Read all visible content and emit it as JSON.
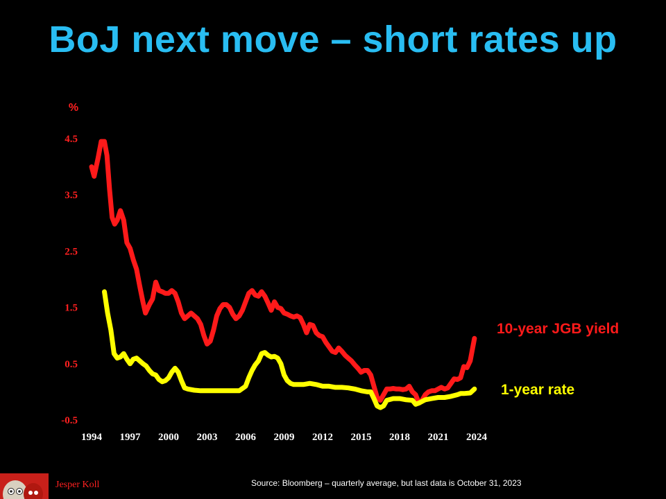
{
  "title": "BoJ next move – short rates up",
  "footer": {
    "author": "Jesper Koll",
    "source": "Source:  Bloomberg – quarterly average,  but last data is October 31, 2023"
  },
  "colors": {
    "title": "#29bdf2",
    "jgb10": "#ff1a1a",
    "rate1": "#ffff00",
    "background": "#000000"
  },
  "chart_data": {
    "type": "line",
    "ylabel": "%",
    "ylim": [
      -0.5,
      4.5
    ],
    "yticks": [
      "4.5",
      "3.5",
      "2.5",
      "1.5",
      "0.5",
      "-0.5"
    ],
    "xticks": [
      "1994",
      "1997",
      "2000",
      "2003",
      "2006",
      "2009",
      "2012",
      "2015",
      "2018",
      "2021",
      "2024"
    ],
    "xlim": [
      1994,
      2024
    ],
    "grid": false,
    "legend": "inline-right",
    "series": [
      {
        "name": "10-year JGB yield",
        "points": [
          [
            1994.0,
            4.0
          ],
          [
            1994.2,
            3.83
          ],
          [
            1994.5,
            4.15
          ],
          [
            1994.75,
            4.45
          ],
          [
            1995.0,
            4.45
          ],
          [
            1995.2,
            4.2
          ],
          [
            1995.4,
            3.6
          ],
          [
            1995.6,
            3.1
          ],
          [
            1995.8,
            2.98
          ],
          [
            1996.0,
            3.05
          ],
          [
            1996.25,
            3.22
          ],
          [
            1996.5,
            3.05
          ],
          [
            1996.75,
            2.65
          ],
          [
            1997.0,
            2.55
          ],
          [
            1997.25,
            2.35
          ],
          [
            1997.5,
            2.18
          ],
          [
            1997.75,
            1.88
          ],
          [
            1998.0,
            1.6
          ],
          [
            1998.2,
            1.4
          ],
          [
            1998.5,
            1.55
          ],
          [
            1998.75,
            1.65
          ],
          [
            1999.0,
            1.95
          ],
          [
            1999.25,
            1.8
          ],
          [
            1999.5,
            1.78
          ],
          [
            1999.75,
            1.75
          ],
          [
            2000.0,
            1.75
          ],
          [
            2000.25,
            1.8
          ],
          [
            2000.5,
            1.75
          ],
          [
            2000.75,
            1.6
          ],
          [
            2001.0,
            1.4
          ],
          [
            2001.25,
            1.3
          ],
          [
            2001.5,
            1.35
          ],
          [
            2001.75,
            1.4
          ],
          [
            2002.0,
            1.35
          ],
          [
            2002.25,
            1.3
          ],
          [
            2002.5,
            1.2
          ],
          [
            2002.75,
            1.0
          ],
          [
            2003.0,
            0.85
          ],
          [
            2003.25,
            0.9
          ],
          [
            2003.5,
            1.1
          ],
          [
            2003.75,
            1.35
          ],
          [
            2004.0,
            1.48
          ],
          [
            2004.25,
            1.55
          ],
          [
            2004.5,
            1.55
          ],
          [
            2004.75,
            1.5
          ],
          [
            2005.0,
            1.38
          ],
          [
            2005.25,
            1.3
          ],
          [
            2005.5,
            1.35
          ],
          [
            2005.75,
            1.45
          ],
          [
            2006.0,
            1.6
          ],
          [
            2006.25,
            1.75
          ],
          [
            2006.5,
            1.8
          ],
          [
            2006.75,
            1.72
          ],
          [
            2007.0,
            1.7
          ],
          [
            2007.25,
            1.78
          ],
          [
            2007.5,
            1.7
          ],
          [
            2007.75,
            1.58
          ],
          [
            2008.0,
            1.45
          ],
          [
            2008.25,
            1.6
          ],
          [
            2008.5,
            1.5
          ],
          [
            2008.75,
            1.48
          ],
          [
            2009.0,
            1.4
          ],
          [
            2009.25,
            1.38
          ],
          [
            2009.5,
            1.35
          ],
          [
            2009.75,
            1.33
          ],
          [
            2010.0,
            1.35
          ],
          [
            2010.25,
            1.32
          ],
          [
            2010.5,
            1.2
          ],
          [
            2010.75,
            1.05
          ],
          [
            2011.0,
            1.2
          ],
          [
            2011.25,
            1.18
          ],
          [
            2011.5,
            1.05
          ],
          [
            2011.75,
            1.0
          ],
          [
            2012.0,
            0.98
          ],
          [
            2012.25,
            0.88
          ],
          [
            2012.5,
            0.8
          ],
          [
            2012.75,
            0.72
          ],
          [
            2013.0,
            0.7
          ],
          [
            2013.25,
            0.78
          ],
          [
            2013.5,
            0.72
          ],
          [
            2013.75,
            0.65
          ],
          [
            2014.0,
            0.6
          ],
          [
            2014.25,
            0.55
          ],
          [
            2014.5,
            0.48
          ],
          [
            2014.75,
            0.42
          ],
          [
            2015.0,
            0.35
          ],
          [
            2015.25,
            0.38
          ],
          [
            2015.5,
            0.38
          ],
          [
            2015.75,
            0.3
          ],
          [
            2016.0,
            0.1
          ],
          [
            2016.25,
            -0.1
          ],
          [
            2016.5,
            -0.15
          ],
          [
            2016.75,
            -0.05
          ],
          [
            2017.0,
            0.05
          ],
          [
            2017.25,
            0.05
          ],
          [
            2017.5,
            0.06
          ],
          [
            2017.75,
            0.05
          ],
          [
            2018.0,
            0.05
          ],
          [
            2018.25,
            0.04
          ],
          [
            2018.5,
            0.05
          ],
          [
            2018.75,
            0.1
          ],
          [
            2019.0,
            0.0
          ],
          [
            2019.25,
            -0.05
          ],
          [
            2019.5,
            -0.2
          ],
          [
            2019.75,
            -0.15
          ],
          [
            2020.0,
            -0.05
          ],
          [
            2020.25,
            0.0
          ],
          [
            2020.5,
            0.02
          ],
          [
            2020.75,
            0.02
          ],
          [
            2021.0,
            0.05
          ],
          [
            2021.25,
            0.08
          ],
          [
            2021.5,
            0.05
          ],
          [
            2021.75,
            0.07
          ],
          [
            2022.0,
            0.15
          ],
          [
            2022.25,
            0.23
          ],
          [
            2022.5,
            0.22
          ],
          [
            2022.75,
            0.25
          ],
          [
            2023.0,
            0.45
          ],
          [
            2023.25,
            0.43
          ],
          [
            2023.5,
            0.55
          ],
          [
            2023.83,
            0.95
          ]
        ]
      },
      {
        "name": "1-year rate",
        "points": [
          [
            1995.0,
            1.78
          ],
          [
            1995.25,
            1.4
          ],
          [
            1995.5,
            1.1
          ],
          [
            1995.75,
            0.68
          ],
          [
            1996.0,
            0.6
          ],
          [
            1996.25,
            0.62
          ],
          [
            1996.5,
            0.68
          ],
          [
            1996.75,
            0.58
          ],
          [
            1997.0,
            0.5
          ],
          [
            1997.25,
            0.58
          ],
          [
            1997.5,
            0.6
          ],
          [
            1997.75,
            0.55
          ],
          [
            1998.0,
            0.5
          ],
          [
            1998.25,
            0.46
          ],
          [
            1998.5,
            0.38
          ],
          [
            1998.75,
            0.32
          ],
          [
            1999.0,
            0.3
          ],
          [
            1999.25,
            0.22
          ],
          [
            1999.5,
            0.18
          ],
          [
            1999.75,
            0.2
          ],
          [
            2000.0,
            0.25
          ],
          [
            2000.25,
            0.35
          ],
          [
            2000.5,
            0.42
          ],
          [
            2000.75,
            0.35
          ],
          [
            2001.0,
            0.2
          ],
          [
            2001.25,
            0.07
          ],
          [
            2001.5,
            0.05
          ],
          [
            2002.0,
            0.03
          ],
          [
            2002.5,
            0.02
          ],
          [
            2003.0,
            0.02
          ],
          [
            2003.5,
            0.02
          ],
          [
            2004.0,
            0.02
          ],
          [
            2005.0,
            0.02
          ],
          [
            2005.5,
            0.02
          ],
          [
            2006.0,
            0.1
          ],
          [
            2006.25,
            0.25
          ],
          [
            2006.5,
            0.38
          ],
          [
            2006.75,
            0.48
          ],
          [
            2007.0,
            0.55
          ],
          [
            2007.25,
            0.68
          ],
          [
            2007.5,
            0.7
          ],
          [
            2007.75,
            0.65
          ],
          [
            2008.0,
            0.62
          ],
          [
            2008.25,
            0.63
          ],
          [
            2008.5,
            0.6
          ],
          [
            2008.75,
            0.5
          ],
          [
            2009.0,
            0.3
          ],
          [
            2009.25,
            0.2
          ],
          [
            2009.5,
            0.15
          ],
          [
            2009.75,
            0.13
          ],
          [
            2010.0,
            0.13
          ],
          [
            2010.5,
            0.13
          ],
          [
            2011.0,
            0.15
          ],
          [
            2011.5,
            0.13
          ],
          [
            2012.0,
            0.1
          ],
          [
            2012.5,
            0.1
          ],
          [
            2013.0,
            0.08
          ],
          [
            2013.5,
            0.08
          ],
          [
            2014.0,
            0.07
          ],
          [
            2014.5,
            0.05
          ],
          [
            2015.0,
            0.02
          ],
          [
            2015.5,
            0.0
          ],
          [
            2015.75,
            0.0
          ],
          [
            2016.0,
            -0.12
          ],
          [
            2016.25,
            -0.25
          ],
          [
            2016.5,
            -0.28
          ],
          [
            2016.75,
            -0.25
          ],
          [
            2017.0,
            -0.15
          ],
          [
            2017.5,
            -0.12
          ],
          [
            2018.0,
            -0.12
          ],
          [
            2018.5,
            -0.14
          ],
          [
            2019.0,
            -0.15
          ],
          [
            2019.25,
            -0.22
          ],
          [
            2019.5,
            -0.2
          ],
          [
            2019.75,
            -0.17
          ],
          [
            2020.0,
            -0.14
          ],
          [
            2020.5,
            -0.12
          ],
          [
            2021.0,
            -0.1
          ],
          [
            2021.5,
            -0.1
          ],
          [
            2022.0,
            -0.08
          ],
          [
            2022.5,
            -0.05
          ],
          [
            2022.75,
            -0.03
          ],
          [
            2023.0,
            -0.03
          ],
          [
            2023.5,
            -0.02
          ],
          [
            2023.83,
            0.05
          ]
        ]
      }
    ]
  }
}
